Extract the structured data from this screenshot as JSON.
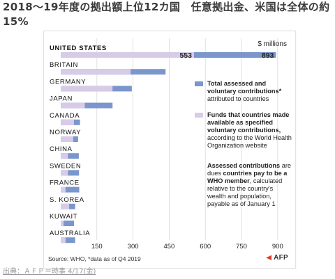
{
  "page": {
    "title": "2018～19年度の拠出額上位12カ国　任意拠出金、米国は全体の約15%",
    "credit": "出典：ＡＦＰ＝時事 4/17(金)"
  },
  "chart_data": {
    "type": "bar",
    "unit_label": "$ millions",
    "categories": [
      "UNITED STATES",
      "BRITAIN",
      "GERMANY",
      "JAPAN",
      "CANADA",
      "NORWAY",
      "CHINA",
      "SWEDEN",
      "FRANCE",
      "S. KOREA",
      "KUWAIT",
      "AUSTRALIA"
    ],
    "series": [
      {
        "name": "Total assessed and voluntary contributions* attributed to countries",
        "color": "#7b96cc",
        "values": [
          893,
          435,
          295,
          215,
          80,
          72,
          75,
          76,
          77,
          60,
          55,
          60
        ]
      },
      {
        "name": "Funds that countries made available as specified voluntary contributions, according to the World Health Organization website",
        "color": "#d8cbe8",
        "values": [
          553,
          290,
          215,
          100,
          55,
          52,
          30,
          30,
          20,
          35,
          12,
          20
        ]
      }
    ],
    "data_labels": {
      "UNITED STATES": {
        "voluntary": "553",
        "total": "893"
      }
    },
    "xticks": [
      150,
      300,
      450,
      600,
      750,
      900
    ],
    "xlim": [
      0,
      970
    ],
    "legend_placement": "right",
    "note": "Assessed contributions are dues countries pay to be a WHO member, calculated relative to the country's wealth and population, payable as of January 1",
    "source": "Source: WHO, *data as of Q4 2019",
    "logo": "AFP"
  },
  "legend": {
    "total_bold": "Total assessed and voluntary contributions*",
    "total_rest": " attributed to countries",
    "funds_bold": "Funds that countries made available as specified voluntary contributions,",
    "funds_rest": " according to the World Health Organization website",
    "note_bold1": "Assessed contributions",
    "note_mid1": " are dues ",
    "note_bold2": "countries pay to be a WHO member",
    "note_rest": ", calculated relative to the country's wealth and population, payable as of January 1"
  }
}
